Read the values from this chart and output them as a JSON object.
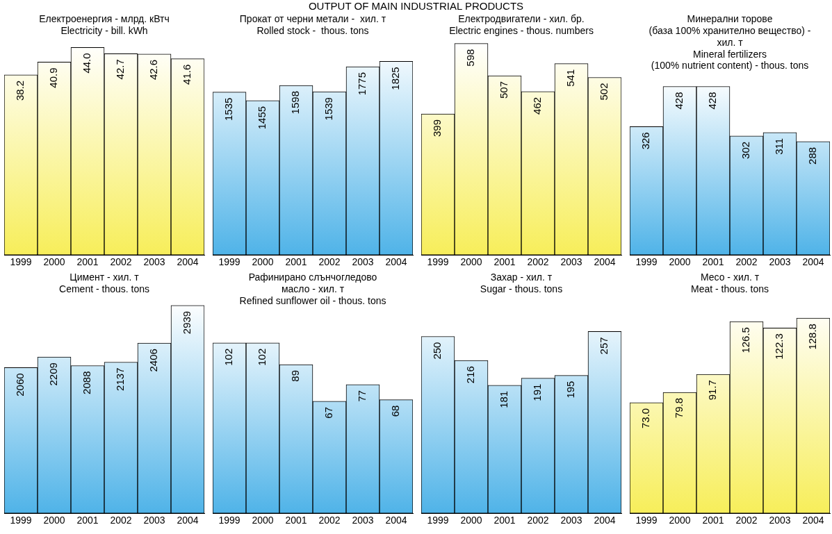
{
  "chart_data": [
    {
      "type": "bar",
      "title": "Електроенергия - млрд. кВтч\nElectricity - bill. kWh",
      "annotations": [
        "OUTPUT OF MAIN INDUSTRIAL PRODUCTS"
      ],
      "categories": [
        "1999",
        "2000",
        "2001",
        "2002",
        "2003",
        "2004"
      ],
      "values": [
        38.2,
        40.9,
        44.0,
        42.7,
        42.6,
        41.6
      ],
      "value_labels": [
        "38.2",
        "40.9",
        "44.0",
        "42.7",
        "42.6",
        "41.6"
      ],
      "color": "#f7ee5a",
      "tick_labels": "x"
    },
    {
      "type": "bar",
      "title": "Прокат от черни метали -  хил. т\nRolled stock -  thous. tons",
      "categories": [
        "1999",
        "2000",
        "2001",
        "2002",
        "2003",
        "2004"
      ],
      "values": [
        1535,
        1455,
        1598,
        1539,
        1775,
        1825
      ],
      "value_labels": [
        "1535",
        "1455",
        "1598",
        "1539",
        "1775",
        "1825"
      ],
      "color": "#4fb3e8",
      "tick_labels": "x"
    },
    {
      "type": "bar",
      "title": "Електродвигатели - хил. бр.\nElectric engines - thous. numbers",
      "categories": [
        "1999",
        "2000",
        "2001",
        "2002",
        "2003",
        "2004"
      ],
      "values": [
        399,
        598,
        507,
        462,
        541,
        502
      ],
      "value_labels": [
        "399",
        "598",
        "507",
        "462",
        "541",
        "502"
      ],
      "color": "#f7ee5a",
      "tick_labels": "x"
    },
    {
      "type": "bar",
      "title": "Минерални торове\n(база 100% хранително вещество) -\nхил. т\nMineral fertilizers\n(100% nutrient content) - thous. tons",
      "categories": [
        "1999",
        "2000",
        "2001",
        "2002",
        "2003",
        "2004"
      ],
      "values": [
        326,
        428,
        428,
        302,
        311,
        288
      ],
      "value_labels": [
        "326",
        "428",
        "428",
        "302",
        "311",
        "288"
      ],
      "color": "#4fb3e8",
      "tick_labels": "x"
    },
    {
      "type": "bar",
      "title": "Цимент - хил. т\nCement - thous. tons",
      "categories": [
        "1999",
        "2000",
        "2001",
        "2002",
        "2003",
        "2004"
      ],
      "values": [
        2060,
        2209,
        2088,
        2137,
        2406,
        2939
      ],
      "value_labels": [
        "2060",
        "2209",
        "2088",
        "2137",
        "2406",
        "2939"
      ],
      "color": "#4fb3e8",
      "tick_labels": "x"
    },
    {
      "type": "bar",
      "title": "Рафинирано слънчогледово\nмасло - хил. т\nRefined sunflower oil - thous. tons",
      "categories": [
        "1999",
        "2000",
        "2001",
        "2002",
        "2003",
        "2004"
      ],
      "values": [
        102,
        102,
        89,
        67,
        77,
        68
      ],
      "value_labels": [
        "102",
        "102",
        "89",
        "67",
        "77",
        "68"
      ],
      "color": "#4fb3e8",
      "tick_labels": "x"
    },
    {
      "type": "bar",
      "title": "Захар - хил. т\nSugar - thous. tons",
      "categories": [
        "1999",
        "2000",
        "2001",
        "2002",
        "2003",
        "2004"
      ],
      "values": [
        250,
        216,
        181,
        191,
        195,
        257
      ],
      "value_labels": [
        "250",
        "216",
        "181",
        "191",
        "195",
        "257"
      ],
      "color": "#4fb3e8",
      "tick_labels": "x"
    },
    {
      "type": "bar",
      "title": "Месо - хил. т\nMeat - thous. tons",
      "categories": [
        "1999",
        "2000",
        "2001",
        "2002",
        "2003",
        "2004"
      ],
      "values": [
        73.0,
        79.8,
        91.7,
        126.5,
        122.3,
        128.8
      ],
      "value_labels": [
        "73.0",
        "79.8",
        "91.7",
        "126.5",
        "122.3",
        "128.8"
      ],
      "color": "#f7ee5a",
      "tick_labels": "x"
    }
  ]
}
